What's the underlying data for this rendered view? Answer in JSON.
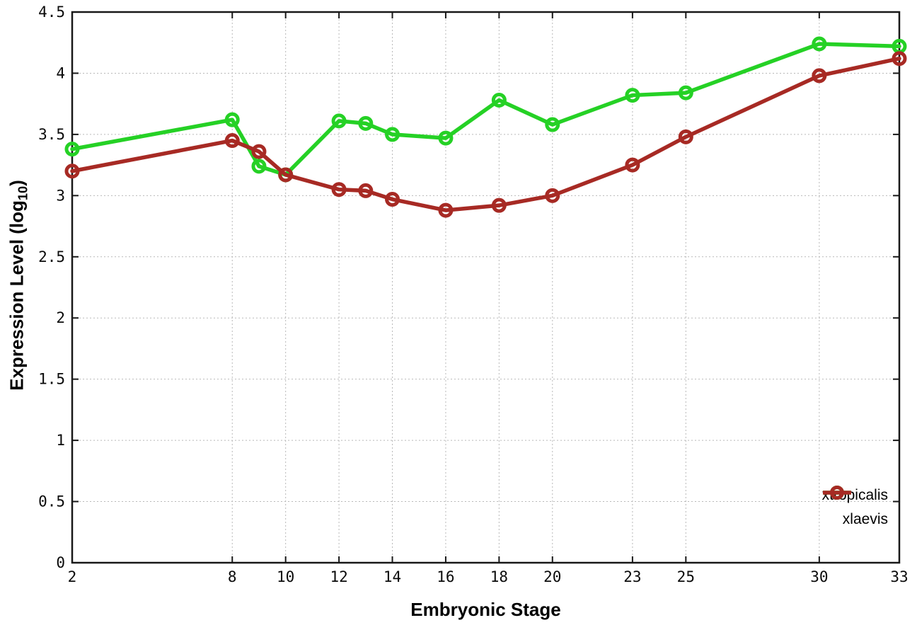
{
  "chart_data": {
    "type": "line",
    "title": "",
    "xlabel": "Embryonic Stage",
    "ylabel": "Expression Level (log10)",
    "ylabel_parts": {
      "main": "Expression Level (log",
      "sub": "10",
      "end": ")"
    },
    "x": [
      2,
      8,
      9,
      10,
      12,
      13,
      14,
      16,
      18,
      20,
      23,
      25,
      30,
      33
    ],
    "x_ticks": [
      2,
      8,
      10,
      12,
      14,
      16,
      18,
      20,
      23,
      25,
      30,
      33
    ],
    "y_ticks": [
      0,
      0.5,
      1,
      1.5,
      2,
      2.5,
      3,
      3.5,
      4,
      4.5
    ],
    "xlim": [
      2,
      33
    ],
    "ylim": [
      0,
      4.5
    ],
    "grid": true,
    "legend_position": "bottom-right",
    "marker": "open-circle",
    "series": [
      {
        "name": "xtropicalis",
        "color": "#25d125",
        "values": [
          3.38,
          3.62,
          3.24,
          3.17,
          3.61,
          3.59,
          3.5,
          3.47,
          3.78,
          3.58,
          3.82,
          3.84,
          4.24,
          4.22
        ]
      },
      {
        "name": "xlaevis",
        "color": "#a72a24",
        "values": [
          3.2,
          3.45,
          3.36,
          3.17,
          3.05,
          3.04,
          2.97,
          2.88,
          2.92,
          3.0,
          3.25,
          3.48,
          3.98,
          4.12
        ]
      }
    ]
  },
  "colors": {
    "background": "#ffffff",
    "axis": "#181818",
    "grid": "#b9b9b9",
    "text": "#000000"
  }
}
